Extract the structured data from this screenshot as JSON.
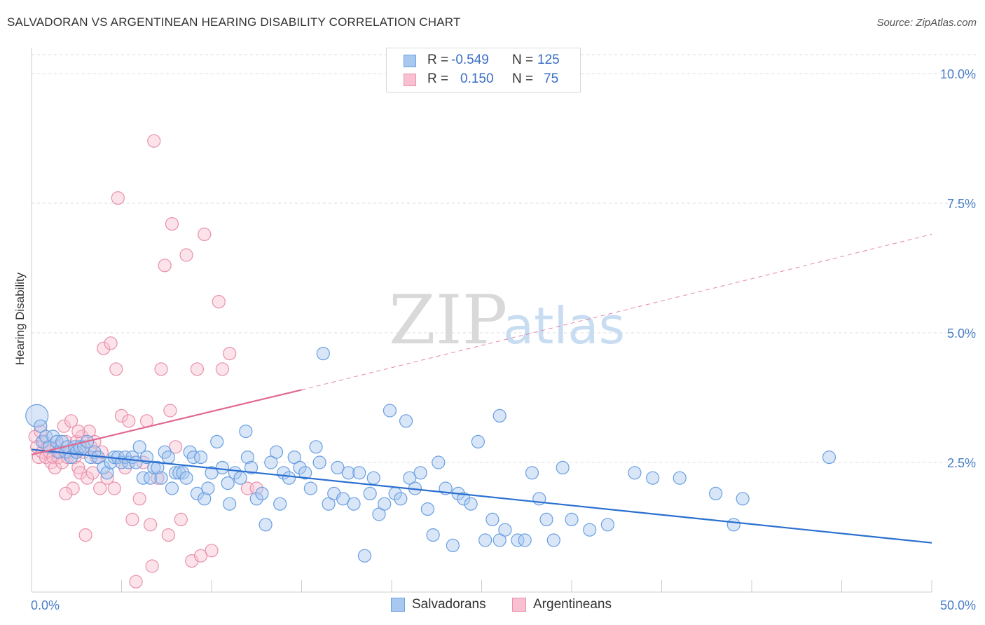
{
  "title": "SALVADORAN VS ARGENTINEAN HEARING DISABILITY CORRELATION CHART",
  "source": "Source: ZipAtlas.com",
  "watermark": {
    "zip": "ZIP",
    "atlas": "atlas"
  },
  "legend": {
    "rows": [
      {
        "r_label": "R =",
        "r_value": "-0.549",
        "n_label": "N =",
        "n_value": "125",
        "color": "#a8c8f0",
        "border": "#6a9fe0"
      },
      {
        "r_label": "R =",
        "r_value": "0.150",
        "n_label": "N =",
        "n_value": "75",
        "color": "#f8c0d0",
        "border": "#e890ac"
      }
    ]
  },
  "bottom_legend": {
    "salvadorans": "Salvadorans",
    "argentineans": "Argentineans"
  },
  "axis": {
    "y_label": "Hearing Disability",
    "x_min_label": "0.0%",
    "x_max_label": "50.0%",
    "y_ticks": [
      "2.5%",
      "5.0%",
      "7.5%",
      "10.0%"
    ]
  },
  "chart_data": {
    "type": "scatter",
    "title": "SALVADORAN VS ARGENTINEAN HEARING DISABILITY CORRELATION CHART",
    "xlabel": "",
    "ylabel": "Hearing Disability",
    "xlim": [
      0,
      50
    ],
    "ylim": [
      0,
      10.5
    ],
    "grid": true,
    "colors": {
      "salvadorans": "#6a9fe0",
      "salvadorans_line": "#2a6fd0",
      "argentineans": "#e890ac",
      "argentineans_line": "#e06890"
    },
    "series": [
      {
        "name": "Salvadorans",
        "trend": {
          "x0": 0,
          "y0": 2.75,
          "x1": 50,
          "y1": 0.95,
          "dashed_to": 50
        },
        "points": [
          [
            0.3,
            3.4
          ],
          [
            0.5,
            3.2
          ],
          [
            0.6,
            2.9
          ],
          [
            0.8,
            3.0
          ],
          [
            1.0,
            2.8
          ],
          [
            1.2,
            3.0
          ],
          [
            1.4,
            2.9
          ],
          [
            1.5,
            2.7
          ],
          [
            1.7,
            2.9
          ],
          [
            1.9,
            2.7
          ],
          [
            2.0,
            2.8
          ],
          [
            2.2,
            2.6
          ],
          [
            2.4,
            2.8
          ],
          [
            2.5,
            2.7
          ],
          [
            2.7,
            2.8
          ],
          [
            2.9,
            2.8
          ],
          [
            3.1,
            2.9
          ],
          [
            3.3,
            2.6
          ],
          [
            3.5,
            2.7
          ],
          [
            3.7,
            2.6
          ],
          [
            4.0,
            2.4
          ],
          [
            4.2,
            2.3
          ],
          [
            4.4,
            2.5
          ],
          [
            4.6,
            2.6
          ],
          [
            4.8,
            2.6
          ],
          [
            5.0,
            2.5
          ],
          [
            5.2,
            2.6
          ],
          [
            5.4,
            2.5
          ],
          [
            5.6,
            2.6
          ],
          [
            5.8,
            2.5
          ],
          [
            6.0,
            2.8
          ],
          [
            6.2,
            2.2
          ],
          [
            6.4,
            2.6
          ],
          [
            6.6,
            2.2
          ],
          [
            6.8,
            2.4
          ],
          [
            7.0,
            2.4
          ],
          [
            7.2,
            2.2
          ],
          [
            7.4,
            2.7
          ],
          [
            7.6,
            2.6
          ],
          [
            7.8,
            2.0
          ],
          [
            8.0,
            2.3
          ],
          [
            8.2,
            2.3
          ],
          [
            8.4,
            2.3
          ],
          [
            8.6,
            2.2
          ],
          [
            8.8,
            2.7
          ],
          [
            9.0,
            2.6
          ],
          [
            9.2,
            1.9
          ],
          [
            9.4,
            2.6
          ],
          [
            9.6,
            1.8
          ],
          [
            9.8,
            2.0
          ],
          [
            10.0,
            2.3
          ],
          [
            10.3,
            2.9
          ],
          [
            10.6,
            2.4
          ],
          [
            10.9,
            2.1
          ],
          [
            11.0,
            1.7
          ],
          [
            11.3,
            2.3
          ],
          [
            11.6,
            2.2
          ],
          [
            11.9,
            3.1
          ],
          [
            12.0,
            2.6
          ],
          [
            12.2,
            2.4
          ],
          [
            12.5,
            1.8
          ],
          [
            12.8,
            1.9
          ],
          [
            13.0,
            1.3
          ],
          [
            13.3,
            2.5
          ],
          [
            13.6,
            2.7
          ],
          [
            13.8,
            1.7
          ],
          [
            14.0,
            2.3
          ],
          [
            14.3,
            2.2
          ],
          [
            14.6,
            2.6
          ],
          [
            14.9,
            2.4
          ],
          [
            15.2,
            2.3
          ],
          [
            15.5,
            2.0
          ],
          [
            15.8,
            2.8
          ],
          [
            16.0,
            2.5
          ],
          [
            16.2,
            4.6
          ],
          [
            16.5,
            1.7
          ],
          [
            16.8,
            1.9
          ],
          [
            17.0,
            2.4
          ],
          [
            17.3,
            1.8
          ],
          [
            17.6,
            2.3
          ],
          [
            17.9,
            1.7
          ],
          [
            18.2,
            2.3
          ],
          [
            18.5,
            0.7
          ],
          [
            18.8,
            1.9
          ],
          [
            19.0,
            2.2
          ],
          [
            19.3,
            1.5
          ],
          [
            19.6,
            1.7
          ],
          [
            19.9,
            3.5
          ],
          [
            20.2,
            1.9
          ],
          [
            20.5,
            1.8
          ],
          [
            20.8,
            3.3
          ],
          [
            21.0,
            2.2
          ],
          [
            21.3,
            2.0
          ],
          [
            21.6,
            2.3
          ],
          [
            22.0,
            1.6
          ],
          [
            22.3,
            1.1
          ],
          [
            22.6,
            2.5
          ],
          [
            23.0,
            2.0
          ],
          [
            23.4,
            0.9
          ],
          [
            23.7,
            1.9
          ],
          [
            24.0,
            1.8
          ],
          [
            24.4,
            1.7
          ],
          [
            24.8,
            2.9
          ],
          [
            25.2,
            1.0
          ],
          [
            25.6,
            1.4
          ],
          [
            26.0,
            1.0
          ],
          [
            26.3,
            1.2
          ],
          [
            26.0,
            3.4
          ],
          [
            27.0,
            1.0
          ],
          [
            27.4,
            1.0
          ],
          [
            27.8,
            2.3
          ],
          [
            28.2,
            1.8
          ],
          [
            28.6,
            1.4
          ],
          [
            29.0,
            1.0
          ],
          [
            29.5,
            2.4
          ],
          [
            30.0,
            1.4
          ],
          [
            31.0,
            1.2
          ],
          [
            32.0,
            1.3
          ],
          [
            33.5,
            2.3
          ],
          [
            34.5,
            2.2
          ],
          [
            36.0,
            2.2
          ],
          [
            38.0,
            1.9
          ],
          [
            39.0,
            1.3
          ],
          [
            39.5,
            1.8
          ],
          [
            44.3,
            2.6
          ]
        ]
      },
      {
        "name": "Argentineans",
        "trend": {
          "x0": 0,
          "y0": 2.65,
          "x1": 15,
          "y1": 3.9,
          "dashed_to": 50,
          "dashed_y": 6.9
        },
        "points": [
          [
            0.2,
            3.0
          ],
          [
            0.3,
            2.8
          ],
          [
            0.4,
            2.6
          ],
          [
            0.5,
            3.1
          ],
          [
            0.6,
            2.7
          ],
          [
            0.7,
            2.9
          ],
          [
            0.8,
            2.6
          ],
          [
            0.9,
            2.8
          ],
          [
            1.0,
            2.7
          ],
          [
            1.1,
            2.5
          ],
          [
            1.2,
            2.6
          ],
          [
            1.3,
            2.4
          ],
          [
            1.4,
            2.8
          ],
          [
            1.5,
            2.6
          ],
          [
            1.6,
            2.7
          ],
          [
            1.7,
            2.5
          ],
          [
            1.8,
            3.2
          ],
          [
            1.9,
            2.9
          ],
          [
            2.0,
            2.6
          ],
          [
            2.1,
            2.7
          ],
          [
            2.2,
            3.3
          ],
          [
            2.3,
            2.0
          ],
          [
            2.4,
            2.6
          ],
          [
            2.5,
            2.9
          ],
          [
            2.6,
            2.4
          ],
          [
            2.7,
            2.3
          ],
          [
            2.8,
            3.0
          ],
          [
            2.9,
            2.7
          ],
          [
            3.0,
            1.1
          ],
          [
            3.1,
            2.2
          ],
          [
            3.2,
            3.1
          ],
          [
            3.3,
            2.8
          ],
          [
            3.4,
            2.3
          ],
          [
            3.5,
            2.9
          ],
          [
            3.6,
            2.6
          ],
          [
            3.8,
            2.0
          ],
          [
            3.9,
            2.7
          ],
          [
            4.0,
            4.7
          ],
          [
            4.2,
            2.2
          ],
          [
            4.4,
            4.8
          ],
          [
            4.6,
            2.0
          ],
          [
            4.7,
            4.3
          ],
          [
            4.8,
            7.6
          ],
          [
            5.0,
            3.4
          ],
          [
            5.2,
            2.4
          ],
          [
            5.4,
            3.3
          ],
          [
            5.6,
            1.4
          ],
          [
            5.8,
            0.2
          ],
          [
            6.0,
            1.8
          ],
          [
            6.2,
            2.5
          ],
          [
            6.4,
            3.3
          ],
          [
            6.6,
            1.3
          ],
          [
            6.7,
            0.5
          ],
          [
            6.8,
            8.7
          ],
          [
            7.0,
            2.2
          ],
          [
            7.2,
            4.3
          ],
          [
            7.4,
            6.3
          ],
          [
            7.6,
            1.1
          ],
          [
            7.7,
            3.5
          ],
          [
            7.8,
            7.1
          ],
          [
            8.0,
            2.8
          ],
          [
            8.3,
            1.4
          ],
          [
            8.6,
            6.5
          ],
          [
            8.9,
            0.6
          ],
          [
            9.2,
            4.3
          ],
          [
            9.4,
            0.7
          ],
          [
            9.6,
            6.9
          ],
          [
            10.0,
            0.8
          ],
          [
            10.4,
            5.6
          ],
          [
            10.6,
            4.3
          ],
          [
            11.0,
            4.6
          ],
          [
            12.0,
            2.0
          ],
          [
            12.5,
            2.0
          ],
          [
            1.9,
            1.9
          ],
          [
            2.6,
            3.1
          ]
        ]
      }
    ]
  }
}
